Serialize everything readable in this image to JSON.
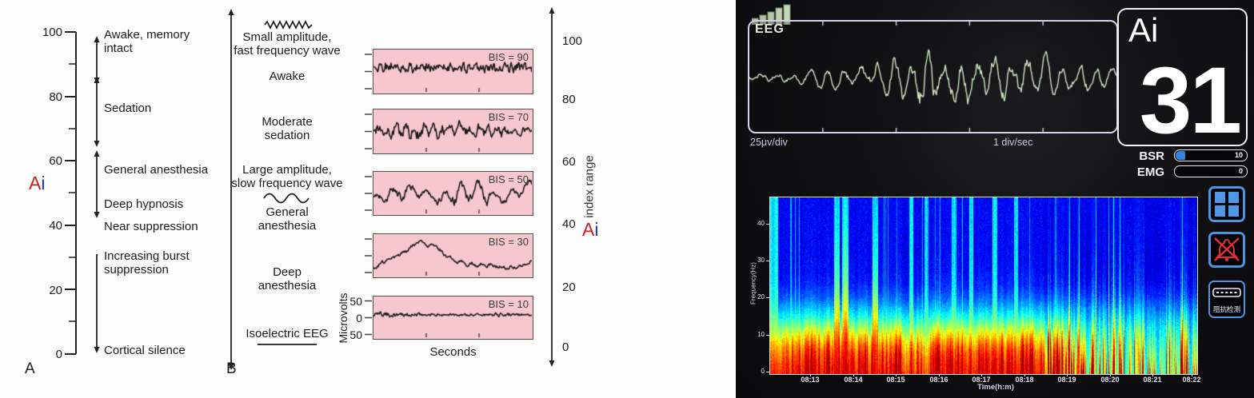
{
  "left_figure": {
    "panel_a": {
      "corner_label": "A",
      "axis_symbol_a": "A",
      "axis_symbol_i": "i",
      "ticks": [
        "100",
        "80",
        "60",
        "40",
        "20",
        "0"
      ],
      "annotations": {
        "awake": "Awake, memory\nintact",
        "sedation": "Sedation",
        "general": "General anesthesia",
        "deep_hypnosis": "Deep hypnosis",
        "near_suppression": "Near suppression",
        "burst": "Increasing burst\nsuppression",
        "cortical": "Cortical silence"
      }
    },
    "panel_b": {
      "corner_label": "B",
      "items": {
        "small_amp": "Small amplitude,\nfast frequency wave",
        "awake": "Awake",
        "moderate": "Moderate\nsedation",
        "large_amp": "Large amplitude,\nslow frequency wave",
        "general": "General\nanesthesia",
        "deep": "Deep\nanesthesia",
        "isoelectric": "Isoelectric EEG"
      }
    },
    "strips": {
      "labels": [
        "BIS = 90",
        "BIS = 70",
        "BIS = 50",
        "BIS = 30",
        "BIS = 10"
      ],
      "xlabel": "Seconds",
      "ylabel": "Microvolts",
      "yticks": [
        "50",
        "0",
        "50"
      ]
    },
    "right_axis": {
      "ticks": [
        "100",
        "80",
        "60",
        "40",
        "20",
        "0"
      ],
      "label": "index range",
      "axis_symbol_a": "A",
      "axis_symbol_i": "i"
    }
  },
  "monitor": {
    "eeg_label": "EEG",
    "scale_vertical": "25μv/div",
    "scale_horizontal": "1 div/sec",
    "ai_title": "Ai",
    "ai_value": "31",
    "bsr_label": "BSR",
    "bsr_value": "10",
    "emg_label": "EMG",
    "emg_value": "0",
    "impedance_button_label": "阻抗检测",
    "spectrogram": {
      "ylabel": "Frequency(Hz)",
      "xlabel": "Time(h:m)",
      "yticks": [
        "40",
        "30",
        "20",
        "10",
        "0"
      ],
      "xticks": [
        "08:13",
        "08:14",
        "08:15",
        "08:16",
        "08:17",
        "08:18",
        "08:19",
        "08:20",
        "08:21",
        "08:22"
      ]
    },
    "colors": {
      "accent_blue": "#4b94e0",
      "alarm_red": "#e23030",
      "bsr_fill": "#2f86e0",
      "trace_green": "#cfe4c2"
    }
  },
  "chart_data": [
    {
      "id": "ai_scale",
      "type": "table",
      "title": "Ai index range vs clinical state",
      "axis": {
        "label": "Ai",
        "min": 0,
        "max": 100,
        "ticks": [
          100,
          80,
          60,
          40,
          20,
          0
        ]
      },
      "rows": [
        {
          "range": "100-85",
          "state": "Awake, memory intact"
        },
        {
          "range": "85-65",
          "state": "Sedation"
        },
        {
          "range": "65-45",
          "state": "General anesthesia / Deep hypnosis"
        },
        {
          "range": "45-40",
          "state": "Near suppression"
        },
        {
          "range": "40-0",
          "state": "Increasing burst suppression"
        },
        {
          "range": "0",
          "state": "Cortical silence"
        }
      ]
    },
    {
      "id": "eeg_strips",
      "type": "line",
      "xlabel": "Seconds",
      "ylabel": "Microvolts",
      "y_ticks": [
        "50",
        "0",
        "50"
      ],
      "strips": [
        {
          "label": "BIS = 90",
          "state": "Awake",
          "seed": 11,
          "smooth": 0.3,
          "amp": 0.16,
          "osc": {
            "f": 0.85,
            "a": 0.5
          },
          "env": [
            [
              0,
              1
            ],
            [
              1,
              1
            ]
          ],
          "path": [
            [
              0,
              0.42
            ],
            [
              1,
              0.42
            ]
          ]
        },
        {
          "label": "BIS = 70",
          "state": "Moderate sedation",
          "seed": 23,
          "smooth": 0.5,
          "amp": 0.28,
          "osc": {
            "f": 0.55,
            "a": 0.55
          },
          "env": [
            [
              0,
              0.7
            ],
            [
              0.25,
              1.2
            ],
            [
              0.4,
              0.9
            ],
            [
              0.55,
              1.1
            ],
            [
              0.75,
              0.8
            ],
            [
              1,
              0.9
            ]
          ],
          "path": [
            [
              0,
              0.5
            ],
            [
              1,
              0.5
            ]
          ]
        },
        {
          "label": "BIS = 50",
          "state": "General anesthesia",
          "seed": 37,
          "smooth": 0.72,
          "amp": 0.42,
          "osc": {
            "f": 0.3,
            "a": 0.6
          },
          "env": [
            [
              0,
              0.8
            ],
            [
              0.15,
              1
            ],
            [
              0.3,
              0.7
            ],
            [
              0.45,
              0.75
            ],
            [
              0.55,
              1.25
            ],
            [
              0.62,
              1.35
            ],
            [
              0.72,
              1
            ],
            [
              0.85,
              0.55
            ],
            [
              1,
              0.8
            ]
          ],
          "path": [
            [
              0,
              0.55
            ],
            [
              0.25,
              0.45
            ],
            [
              0.4,
              0.6
            ],
            [
              0.6,
              0.5
            ],
            [
              0.8,
              0.6
            ],
            [
              1,
              0.35
            ]
          ]
        },
        {
          "label": "BIS = 30",
          "state": "Deep anesthesia",
          "seed": 44,
          "smooth": 0.55,
          "amp": 0.09,
          "osc": {
            "f": 0.5,
            "a": 0.5
          },
          "env": [
            [
              0,
              1
            ],
            [
              1,
              1
            ]
          ],
          "path": [
            [
              0,
              0.82
            ],
            [
              0.08,
              0.62
            ],
            [
              0.16,
              0.5
            ],
            [
              0.24,
              0.32
            ],
            [
              0.3,
              0.14
            ],
            [
              0.34,
              0.3
            ],
            [
              0.38,
              0.22
            ],
            [
              0.45,
              0.5
            ],
            [
              0.52,
              0.64
            ],
            [
              0.6,
              0.7
            ],
            [
              0.7,
              0.73
            ],
            [
              0.8,
              0.76
            ],
            [
              0.88,
              0.79
            ],
            [
              0.94,
              0.75
            ],
            [
              1,
              0.6
            ]
          ]
        },
        {
          "label": "BIS = 10",
          "state": "Isoelectric EEG",
          "seed": 55,
          "smooth": 0.35,
          "amp": 0.08,
          "osc": {
            "f": 0.8,
            "a": 0.35
          },
          "env": [
            [
              0,
              1.3
            ],
            [
              0.3,
              0.7
            ],
            [
              0.6,
              0.5
            ],
            [
              0.8,
              0.8
            ],
            [
              1,
              0.4
            ]
          ],
          "path": [
            [
              0,
              0.44
            ],
            [
              1,
              0.44
            ]
          ]
        }
      ]
    },
    {
      "id": "monitor_eeg",
      "type": "line",
      "label": "EEG",
      "units_v": "25μv/div",
      "units_t": "1 div/sec",
      "seed": 7,
      "smooth": 0.82,
      "amp": 0.75,
      "osc": {
        "f": 0.3,
        "a": 0.8
      },
      "env": [
        [
          0,
          0.1
        ],
        [
          0.1,
          0.12
        ],
        [
          0.18,
          0.2
        ],
        [
          0.27,
          0.26
        ],
        [
          0.34,
          0.3
        ],
        [
          0.4,
          0.5
        ],
        [
          0.45,
          0.9
        ],
        [
          0.5,
          0.75
        ],
        [
          0.55,
          0.65
        ],
        [
          0.6,
          0.55
        ],
        [
          0.65,
          0.45
        ],
        [
          0.7,
          0.52
        ],
        [
          0.75,
          0.38
        ],
        [
          0.8,
          0.42
        ],
        [
          0.86,
          0.3
        ],
        [
          0.93,
          0.28
        ],
        [
          1,
          0.15
        ]
      ],
      "path": [
        [
          0,
          0.5
        ],
        [
          1,
          0.5
        ]
      ]
    },
    {
      "id": "spectrogram",
      "type": "heatmap",
      "xlabel": "Time(h:m)",
      "ylabel": "Frequency(Hz)",
      "x_ticks": [
        "08:13",
        "08:14",
        "08:15",
        "08:16",
        "08:17",
        "08:18",
        "08:19",
        "08:20",
        "08:21",
        "08:22"
      ],
      "y_ticks": [
        0,
        10,
        20,
        30,
        40
      ],
      "f_max": 47,
      "seed": 99,
      "hot_streaks": [
        0.155,
        0.175,
        0.245
      ],
      "cyan_streaks": [
        0.004,
        0.012,
        0.33,
        0.365,
        0.43,
        0.47,
        0.525,
        0.575
      ],
      "band_start": 0.64,
      "description": "EEG power spectrogram: high power (red) below ~10 Hz fading through yellow to cyan/blue above ~15 Hz; vertical artifact streaks near 08:14; burst-suppression vertical banding and fading low-frequency power after ~08:19"
    }
  ]
}
